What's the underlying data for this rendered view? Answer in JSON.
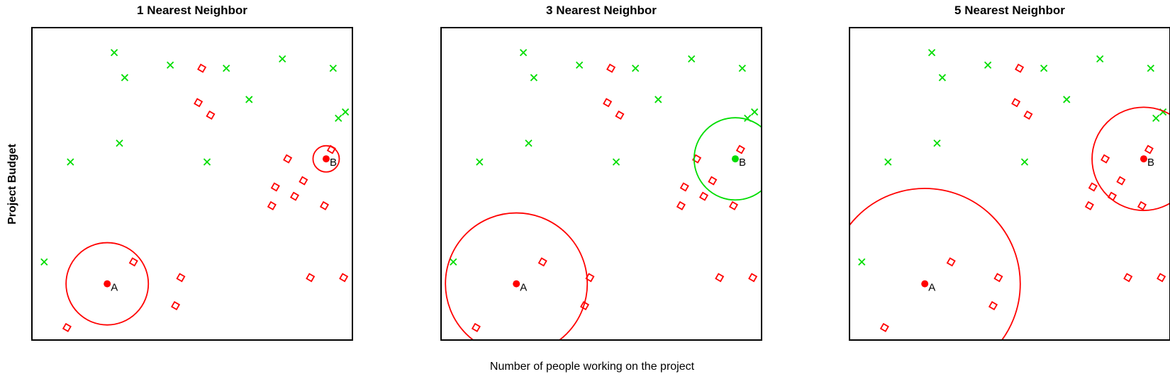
{
  "chart_data": {
    "type": "scatter",
    "xlabel": "Number of people working on the project",
    "ylabel": "Project Budget",
    "series_green": [
      [
        4.7,
        9.2
      ],
      [
        5.3,
        8.4
      ],
      [
        7.9,
        8.8
      ],
      [
        11.1,
        8.7
      ],
      [
        14.3,
        9.0
      ],
      [
        12.4,
        7.7
      ],
      [
        17.2,
        8.7
      ],
      [
        17.5,
        7.1
      ],
      [
        17.9,
        7.3
      ],
      [
        5.0,
        6.3
      ],
      [
        2.2,
        5.7
      ],
      [
        10.0,
        5.7
      ],
      [
        0.7,
        2.5
      ]
    ],
    "series_red": [
      [
        9.7,
        8.7
      ],
      [
        9.5,
        7.6
      ],
      [
        10.2,
        7.2
      ],
      [
        17.1,
        6.1
      ],
      [
        14.6,
        5.8
      ],
      [
        13.9,
        4.9
      ],
      [
        15.5,
        5.1
      ],
      [
        15.0,
        4.6
      ],
      [
        13.7,
        4.3
      ],
      [
        16.7,
        4.3
      ],
      [
        5.8,
        2.5
      ],
      [
        8.5,
        2.0
      ],
      [
        15.9,
        2.0
      ],
      [
        17.8,
        2.0
      ],
      [
        8.2,
        1.1
      ],
      [
        2.0,
        0.4
      ]
    ],
    "query_A": [
      4.3,
      1.8
    ],
    "query_B": [
      16.8,
      5.8
    ],
    "x_range": [
      0,
      18.3
    ],
    "y_range": [
      0,
      10
    ],
    "panels": [
      {
        "title": "1 Nearest Neighbor",
        "k": 1,
        "A_color": "#ff0000",
        "B_color": "#ff0000",
        "A_radius": 2.35,
        "B_radius": 0.75
      },
      {
        "title": "3 Nearest Neighbor",
        "k": 3,
        "A_color": "#ff0000",
        "B_color": "#00dd00",
        "A_radius": 4.05,
        "B_radius": 2.35
      },
      {
        "title": "5 Nearest Neighbor",
        "k": 5,
        "A_color": "#ff0000",
        "B_color": "#ff0000",
        "A_radius": 5.45,
        "B_radius": 2.95
      }
    ],
    "point_labels": {
      "A": "A",
      "B": "B"
    },
    "colors": {
      "green": "#00dd00",
      "red": "#ff0000"
    }
  }
}
